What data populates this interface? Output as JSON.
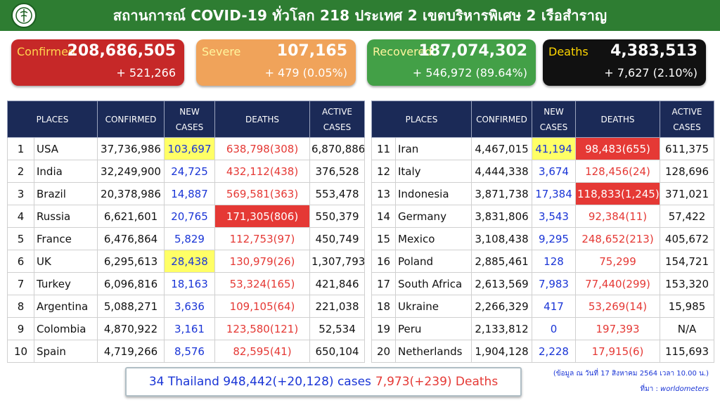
{
  "header": {
    "title": "สถานการณ์ COVID-19 ทั่วโลก 218 ประเทศ 2 เขตบริหารพิเศษ 2 เรือสำราญ"
  },
  "summary": {
    "confirmed": {
      "label": "Confirmed",
      "value": "208,686,505",
      "delta": "+ 521,266",
      "color": "#c62828"
    },
    "severe": {
      "label": "Severe",
      "value": "107,165",
      "delta": "+ 479 (0.05%)",
      "color": "#f0a35a"
    },
    "recovered": {
      "label": "Recovered",
      "value": "187,074,302",
      "delta": "+ 546,972 (89.64%)",
      "color": "#43a047"
    },
    "deaths": {
      "label": "Deaths",
      "value": "4,383,513",
      "delta": "+ 7,627 (2.10%)",
      "color": "#111111"
    }
  },
  "columns": {
    "places": "PLACES",
    "confirmed": "CONFIRMED",
    "new_cases": "NEW CASES",
    "deaths": "DEATHS",
    "active_cases": "ACTIVE CASES"
  },
  "rows_left": [
    {
      "rank": "1",
      "place": "USA",
      "confirmed": "37,736,986",
      "new_cases": "103,697",
      "deaths": "638,798(308)",
      "active": "6,870,886"
    },
    {
      "rank": "2",
      "place": "India",
      "confirmed": "32,249,900",
      "new_cases": "24,725",
      "deaths": "432,112(438)",
      "active": "376,528"
    },
    {
      "rank": "3",
      "place": "Brazil",
      "confirmed": "20,378,986",
      "new_cases": "14,887",
      "deaths": "569,581(363)",
      "active": "553,478"
    },
    {
      "rank": "4",
      "place": "Russia",
      "confirmed": "6,621,601",
      "new_cases": "20,765",
      "deaths": "171,305(806)",
      "active": "550,379"
    },
    {
      "rank": "5",
      "place": "France",
      "confirmed": "6,476,864",
      "new_cases": "5,829",
      "deaths": "112,753(97)",
      "active": "450,749"
    },
    {
      "rank": "6",
      "place": "UK",
      "confirmed": "6,295,613",
      "new_cases": "28,438",
      "deaths": "130,979(26)",
      "active": "1,307,793"
    },
    {
      "rank": "7",
      "place": "Turkey",
      "confirmed": "6,096,816",
      "new_cases": "18,163",
      "deaths": "53,324(165)",
      "active": "421,846"
    },
    {
      "rank": "8",
      "place": "Argentina",
      "confirmed": "5,088,271",
      "new_cases": "3,636",
      "deaths": "109,105(64)",
      "active": "221,038"
    },
    {
      "rank": "9",
      "place": "Colombia",
      "confirmed": "4,870,922",
      "new_cases": "3,161",
      "deaths": "123,580(121)",
      "active": "52,534"
    },
    {
      "rank": "10",
      "place": "Spain",
      "confirmed": "4,719,266",
      "new_cases": "8,576",
      "deaths": "82,595(41)",
      "active": "650,104"
    }
  ],
  "rows_right": [
    {
      "rank": "11",
      "place": "Iran",
      "confirmed": "4,467,015",
      "new_cases": "41,194",
      "deaths": "98,483(655)",
      "active": "611,375"
    },
    {
      "rank": "12",
      "place": "Italy",
      "confirmed": "4,444,338",
      "new_cases": "3,674",
      "deaths": "128,456(24)",
      "active": "128,696"
    },
    {
      "rank": "13",
      "place": "Indonesia",
      "confirmed": "3,871,738",
      "new_cases": "17,384",
      "deaths": "118,833(1,245)",
      "active": "371,021"
    },
    {
      "rank": "14",
      "place": "Germany",
      "confirmed": "3,831,806",
      "new_cases": "3,543",
      "deaths": "92,384(11)",
      "active": "57,422"
    },
    {
      "rank": "15",
      "place": "Mexico",
      "confirmed": "3,108,438",
      "new_cases": "9,295",
      "deaths": "248,652(213)",
      "active": "405,672"
    },
    {
      "rank": "16",
      "place": "Poland",
      "confirmed": "2,885,461",
      "new_cases": "128",
      "deaths": "75,299",
      "active": "154,721"
    },
    {
      "rank": "17",
      "place": "South Africa",
      "confirmed": "2,613,569",
      "new_cases": "7,983",
      "deaths": "77,440(299)",
      "active": "153,320"
    },
    {
      "rank": "18",
      "place": "Ukraine",
      "confirmed": "2,266,329",
      "new_cases": "417",
      "deaths": "53,269(14)",
      "active": "15,985"
    },
    {
      "rank": "19",
      "place": "Peru",
      "confirmed": "2,133,812",
      "new_cases": "0",
      "deaths": "197,393",
      "active": "N/A"
    },
    {
      "rank": "20",
      "place": "Netherlands",
      "confirmed": "1,904,128",
      "new_cases": "2,228",
      "deaths": "17,915(6)",
      "active": "115,693"
    }
  ],
  "highlights": {
    "new_cases_yellow": [
      "USA",
      "UK",
      "Iran"
    ],
    "deaths_red": [
      "Russia",
      "Iran",
      "Indonesia"
    ],
    "yellow": "#ffff66",
    "red": "#e53935"
  },
  "thailand": {
    "text": "34 Thailand 948,442(+20,128) cases",
    "deaths": "7,973(+239) Deaths"
  },
  "footer": {
    "date_note": "(ข้อมูล ณ วันที่ 17 สิงหาคม 2564 เวลา 10.00 น.)",
    "source_label": "ที่มา :",
    "source": "worldometers"
  }
}
